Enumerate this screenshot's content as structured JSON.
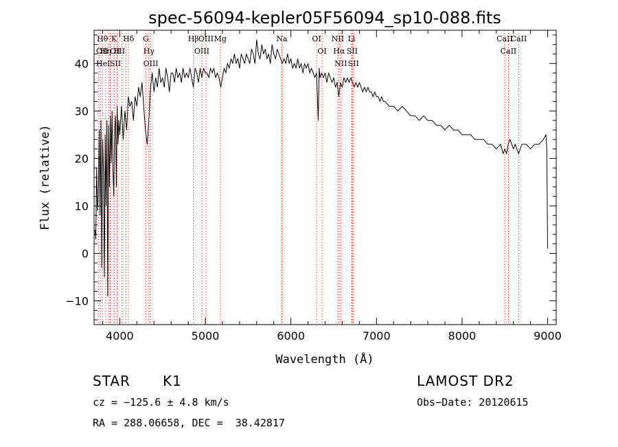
{
  "chart_data": {
    "type": "line",
    "title": "spec-56094-kepler05F56094_sp10-088.fits",
    "xlabel": "Wavelength (Å)",
    "ylabel": "Flux (relative)",
    "xlim": [
      3700,
      9100
    ],
    "ylim": [
      -15,
      47
    ],
    "xticks": [
      4000,
      5000,
      6000,
      7000,
      8000,
      9000
    ],
    "yticks": [
      -10,
      0,
      10,
      20,
      30,
      40
    ],
    "grid": false,
    "colors": {
      "line": "#000000",
      "markers": "#ff0000",
      "frame": "#000000"
    },
    "series": [
      {
        "values": [
          [
            3710,
            5
          ],
          [
            3720,
            3
          ],
          [
            3730,
            18
          ],
          [
            3740,
            9
          ],
          [
            3750,
            12
          ],
          [
            3760,
            26
          ],
          [
            3770,
            8
          ],
          [
            3780,
            28
          ],
          [
            3790,
            -3
          ],
          [
            3800,
            24
          ],
          [
            3810,
            17
          ],
          [
            3820,
            -5
          ],
          [
            3830,
            25
          ],
          [
            3840,
            10
          ],
          [
            3850,
            28
          ],
          [
            3860,
            -9
          ],
          [
            3870,
            27
          ],
          [
            3880,
            14
          ],
          [
            3890,
            29
          ],
          [
            3900,
            19
          ],
          [
            3910,
            30
          ],
          [
            3920,
            18
          ],
          [
            3930,
            12
          ],
          [
            3940,
            26
          ],
          [
            3950,
            29
          ],
          [
            3960,
            14
          ],
          [
            3970,
            31
          ],
          [
            3980,
            23
          ],
          [
            3990,
            28
          ],
          [
            4000,
            25
          ],
          [
            4020,
            31
          ],
          [
            4040,
            24
          ],
          [
            4060,
            30
          ],
          [
            4080,
            26
          ],
          [
            4100,
            33
          ],
          [
            4120,
            31
          ],
          [
            4140,
            32
          ],
          [
            4160,
            28
          ],
          [
            4180,
            33
          ],
          [
            4200,
            31
          ],
          [
            4220,
            35
          ],
          [
            4240,
            33
          ],
          [
            4260,
            36
          ],
          [
            4280,
            31
          ],
          [
            4300,
            26
          ],
          [
            4320,
            23
          ],
          [
            4340,
            28
          ],
          [
            4360,
            35
          ],
          [
            4380,
            38
          ],
          [
            4400,
            34
          ],
          [
            4420,
            37
          ],
          [
            4440,
            35
          ],
          [
            4460,
            39
          ],
          [
            4480,
            36
          ],
          [
            4500,
            37
          ],
          [
            4520,
            35
          ],
          [
            4540,
            39
          ],
          [
            4560,
            37
          ],
          [
            4580,
            34
          ],
          [
            4600,
            38
          ],
          [
            4620,
            38
          ],
          [
            4640,
            36
          ],
          [
            4660,
            39
          ],
          [
            4680,
            37
          ],
          [
            4700,
            38
          ],
          [
            4720,
            36
          ],
          [
            4740,
            39
          ],
          [
            4760,
            37
          ],
          [
            4780,
            38
          ],
          [
            4800,
            37
          ],
          [
            4820,
            39
          ],
          [
            4840,
            37
          ],
          [
            4860,
            35
          ],
          [
            4880,
            39
          ],
          [
            4900,
            38
          ],
          [
            4920,
            36
          ],
          [
            4940,
            39
          ],
          [
            4960,
            37
          ],
          [
            4980,
            39
          ],
          [
            5000,
            38
          ],
          [
            5020,
            38
          ],
          [
            5040,
            37
          ],
          [
            5060,
            39
          ],
          [
            5080,
            38
          ],
          [
            5100,
            39
          ],
          [
            5120,
            37
          ],
          [
            5140,
            38
          ],
          [
            5160,
            37
          ],
          [
            5180,
            35
          ],
          [
            5200,
            37
          ],
          [
            5220,
            39
          ],
          [
            5240,
            38
          ],
          [
            5260,
            40
          ],
          [
            5280,
            39
          ],
          [
            5300,
            41
          ],
          [
            5320,
            40
          ],
          [
            5340,
            42
          ],
          [
            5360,
            40
          ],
          [
            5380,
            41
          ],
          [
            5400,
            39
          ],
          [
            5420,
            42
          ],
          [
            5440,
            41
          ],
          [
            5460,
            40
          ],
          [
            5480,
            42
          ],
          [
            5500,
            41
          ],
          [
            5520,
            40
          ],
          [
            5540,
            43
          ],
          [
            5560,
            42
          ],
          [
            5580,
            40
          ],
          [
            5600,
            45
          ],
          [
            5620,
            42
          ],
          [
            5640,
            41
          ],
          [
            5660,
            44
          ],
          [
            5680,
            42
          ],
          [
            5700,
            43
          ],
          [
            5720,
            41
          ],
          [
            5740,
            42
          ],
          [
            5760,
            40
          ],
          [
            5780,
            44
          ],
          [
            5800,
            42
          ],
          [
            5820,
            41
          ],
          [
            5840,
            43
          ],
          [
            5860,
            42
          ],
          [
            5880,
            41
          ],
          [
            5900,
            40
          ],
          [
            5920,
            41
          ],
          [
            5940,
            40
          ],
          [
            5960,
            42
          ],
          [
            5980,
            40
          ],
          [
            6000,
            41
          ],
          [
            6020,
            39
          ],
          [
            6040,
            40
          ],
          [
            6060,
            39
          ],
          [
            6080,
            41
          ],
          [
            6100,
            39
          ],
          [
            6120,
            40
          ],
          [
            6140,
            38
          ],
          [
            6160,
            40
          ],
          [
            6180,
            39
          ],
          [
            6200,
            40
          ],
          [
            6220,
            38
          ],
          [
            6240,
            39
          ],
          [
            6260,
            38
          ],
          [
            6280,
            37
          ],
          [
            6300,
            38
          ],
          [
            6320,
            28
          ],
          [
            6330,
            39
          ],
          [
            6340,
            37
          ],
          [
            6360,
            38
          ],
          [
            6380,
            37
          ],
          [
            6400,
            38
          ],
          [
            6420,
            36
          ],
          [
            6440,
            38
          ],
          [
            6460,
            37
          ],
          [
            6480,
            36
          ],
          [
            6500,
            37
          ],
          [
            6520,
            35
          ],
          [
            6540,
            36
          ],
          [
            6560,
            33
          ],
          [
            6580,
            36
          ],
          [
            6600,
            35
          ],
          [
            6620,
            37
          ],
          [
            6640,
            36
          ],
          [
            6660,
            37
          ],
          [
            6680,
            36
          ],
          [
            6700,
            37
          ],
          [
            6720,
            36
          ],
          [
            6740,
            35
          ],
          [
            6760,
            36
          ],
          [
            6780,
            35
          ],
          [
            6800,
            36
          ],
          [
            6820,
            35
          ],
          [
            6840,
            34
          ],
          [
            6860,
            35
          ],
          [
            6880,
            34
          ],
          [
            6900,
            35
          ],
          [
            6920,
            34
          ],
          [
            6940,
            34
          ],
          [
            6960,
            33
          ],
          [
            6980,
            34
          ],
          [
            7000,
            33
          ],
          [
            7020,
            33
          ],
          [
            7040,
            32
          ],
          [
            7060,
            33
          ],
          [
            7080,
            32
          ],
          [
            7100,
            32
          ],
          [
            7150,
            31
          ],
          [
            7200,
            31
          ],
          [
            7250,
            30
          ],
          [
            7300,
            31
          ],
          [
            7350,
            30
          ],
          [
            7400,
            29
          ],
          [
            7450,
            29
          ],
          [
            7500,
            28
          ],
          [
            7550,
            29
          ],
          [
            7600,
            28
          ],
          [
            7650,
            28
          ],
          [
            7700,
            27
          ],
          [
            7750,
            27
          ],
          [
            7800,
            26
          ],
          [
            7850,
            27
          ],
          [
            7900,
            26
          ],
          [
            7950,
            26
          ],
          [
            8000,
            25
          ],
          [
            8050,
            25
          ],
          [
            8100,
            25
          ],
          [
            8150,
            24
          ],
          [
            8200,
            24
          ],
          [
            8250,
            24
          ],
          [
            8300,
            23
          ],
          [
            8350,
            23
          ],
          [
            8400,
            22
          ],
          [
            8450,
            23
          ],
          [
            8480,
            21
          ],
          [
            8500,
            22
          ],
          [
            8520,
            21
          ],
          [
            8540,
            23
          ],
          [
            8560,
            24
          ],
          [
            8580,
            23
          ],
          [
            8600,
            22
          ],
          [
            8620,
            23
          ],
          [
            8660,
            21
          ],
          [
            8700,
            23
          ],
          [
            8750,
            23
          ],
          [
            8800,
            22
          ],
          [
            8850,
            23
          ],
          [
            8900,
            23
          ],
          [
            8950,
            24
          ],
          [
            8980,
            25
          ],
          [
            8990,
            22
          ],
          [
            9000,
            1
          ]
        ]
      }
    ],
    "line_markers": [
      {
        "x": 3750,
        "labels": []
      },
      {
        "x": 3771,
        "labels": []
      },
      {
        "x": 3798,
        "labels": [
          "Hθ"
        ]
      },
      {
        "x": 3835,
        "labels": [
          "Hη"
        ]
      },
      {
        "x": 3869,
        "labels": []
      },
      {
        "x": 3889,
        "labels": []
      },
      {
        "x": 3934,
        "labels": [
          "K"
        ]
      },
      {
        "x": 3968,
        "labels": [
          "H"
        ]
      },
      {
        "x": 4026,
        "labels": []
      },
      {
        "x": 4072,
        "labels": []
      },
      {
        "x": 4102,
        "labels": [
          "Hδ"
        ]
      },
      {
        "x": 4304,
        "labels": [
          "G"
        ]
      },
      {
        "x": 4341,
        "labels": [
          "Hγ"
        ]
      },
      {
        "x": 4363,
        "labels": [
          "OIII"
        ]
      },
      {
        "x": 4861,
        "labels": [
          "Hβ"
        ]
      },
      {
        "x": 4959,
        "labels": [
          "OIII"
        ]
      },
      {
        "x": 5007,
        "labels": [
          "OIII"
        ]
      },
      {
        "x": 5175,
        "labels": [
          "Mg"
        ]
      },
      {
        "x": 5894,
        "labels": [
          "Na"
        ]
      },
      {
        "x": 6300,
        "labels": [
          "OI"
        ]
      },
      {
        "x": 6364,
        "labels": [
          "OI"
        ]
      },
      {
        "x": 6548,
        "labels": [
          "NII"
        ]
      },
      {
        "x": 6563,
        "labels": [
          "Hα"
        ]
      },
      {
        "x": 6583,
        "labels": [
          "NII"
        ]
      },
      {
        "x": 6708,
        "labels": [
          "Li"
        ]
      },
      {
        "x": 6716,
        "labels": [
          "SII"
        ]
      },
      {
        "x": 6731,
        "labels": [
          "SII"
        ]
      },
      {
        "x": 8498,
        "labels": [
          "CaII"
        ]
      },
      {
        "x": 8542,
        "labels": [
          "CaII"
        ]
      },
      {
        "x": 8662,
        "labels": [
          "CaII"
        ]
      }
    ],
    "crowded_labels": [
      "OII",
      "OIII",
      "HeI",
      "SII"
    ]
  },
  "info": {
    "class": "STAR",
    "subclass": "K1",
    "survey": "LAMOST DR2",
    "cz": "cz = −125.6 ± 4.8 km/s",
    "obs_date": "Obs−Date: 20120615",
    "coords": "RA = 288.06658, DEC =  38.42817"
  }
}
